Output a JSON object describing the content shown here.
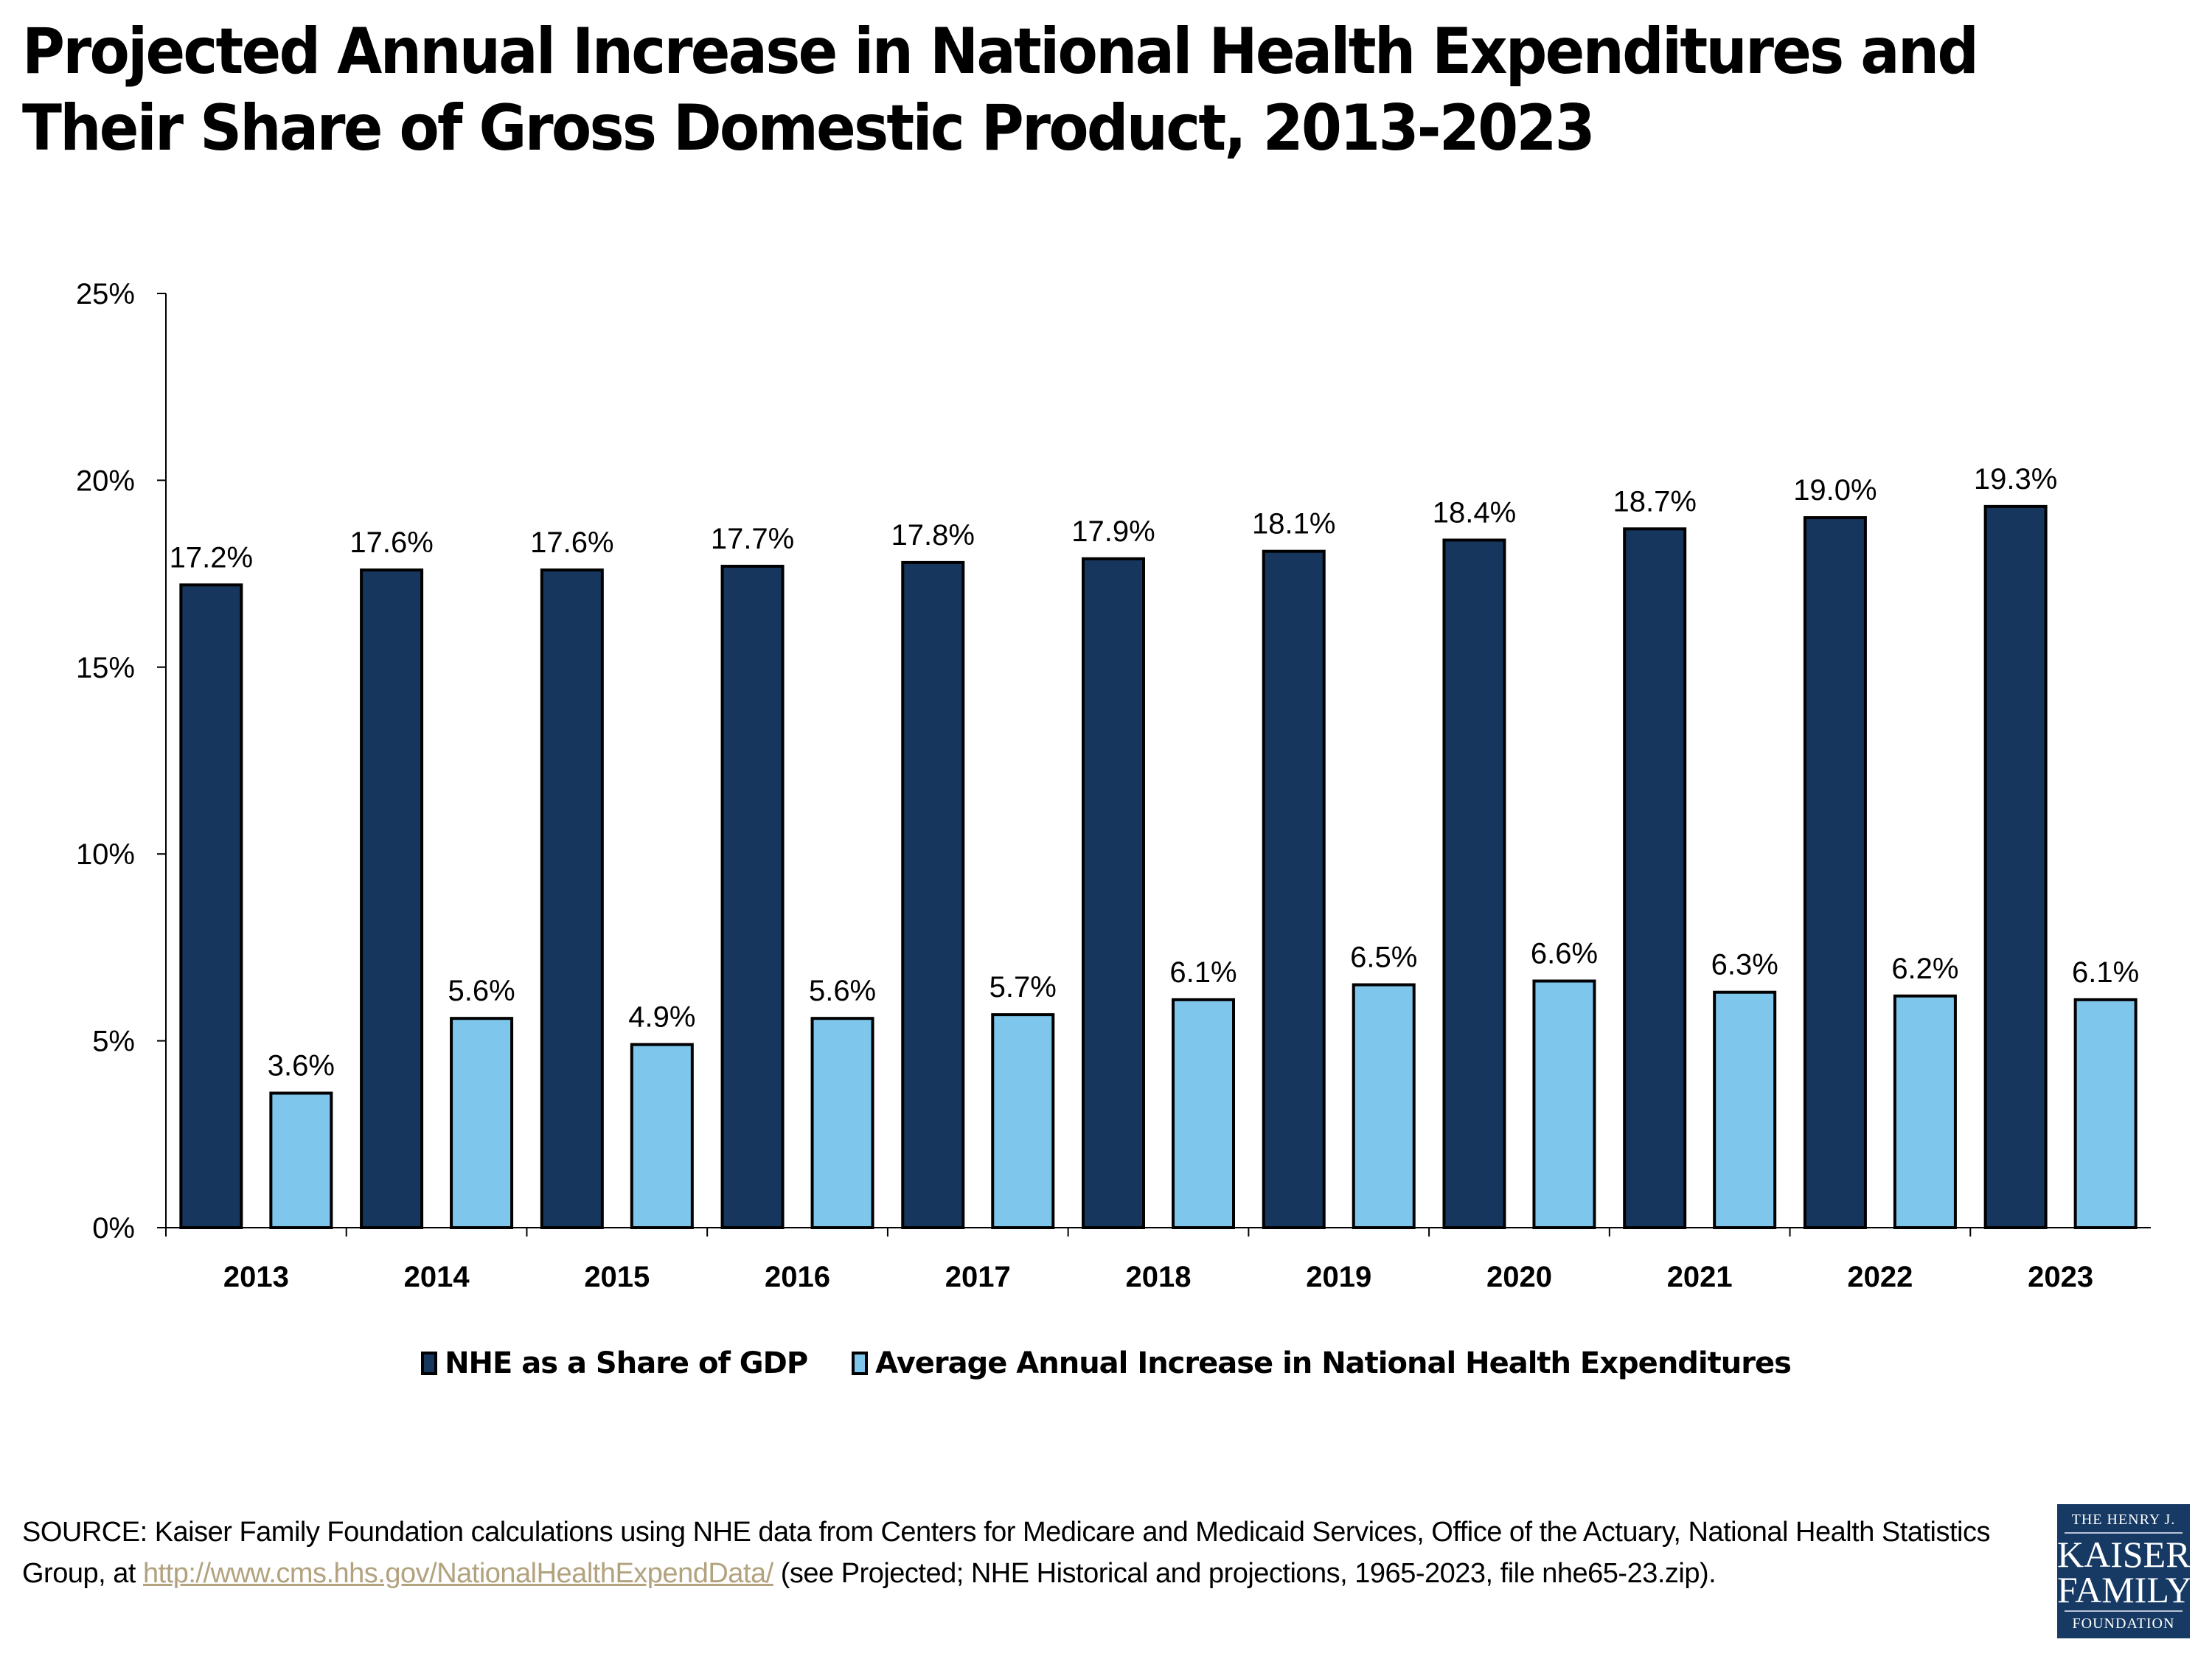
{
  "title": {
    "line1": "Projected Annual Increase in National Health Expenditures and",
    "line2": "Their Share of Gross Domestic Product, 2013-2023"
  },
  "chart_data": {
    "type": "bar",
    "title": "Projected Annual Increase in National Health Expenditures and Their Share of Gross Domestic Product, 2013-2023",
    "xlabel": "",
    "ylabel": "",
    "ylim": [
      0,
      25
    ],
    "yticks": [
      0,
      5,
      10,
      15,
      20,
      25
    ],
    "ytick_labels": [
      "0%",
      "5%",
      "10%",
      "15%",
      "20%",
      "25%"
    ],
    "grid": false,
    "legend_position": "bottom",
    "categories": [
      "2013",
      "2014",
      "2015",
      "2016",
      "2017",
      "2018",
      "2019",
      "2020",
      "2021",
      "2022",
      "2023"
    ],
    "series": [
      {
        "name": "NHE as a Share of GDP",
        "color": "#17365D",
        "values": [
          17.2,
          17.6,
          17.6,
          17.7,
          17.8,
          17.9,
          18.1,
          18.4,
          18.7,
          19.0,
          19.3
        ],
        "labels": [
          "17.2%",
          "17.6%",
          "17.6%",
          "17.7%",
          "17.8%",
          "17.9%",
          "18.1%",
          "18.4%",
          "18.7%",
          "19.0%",
          "19.3%"
        ]
      },
      {
        "name": "Average Annual Increase in National Health Expenditures",
        "color": "#7FC6EC",
        "values": [
          3.6,
          5.6,
          4.9,
          5.6,
          5.7,
          6.1,
          6.5,
          6.6,
          6.3,
          6.2,
          6.1
        ],
        "labels": [
          "3.6%",
          "5.6%",
          "4.9%",
          "5.6%",
          "5.7%",
          "6.1%",
          "6.5%",
          "6.6%",
          "6.3%",
          "6.2%",
          "6.1%"
        ]
      }
    ]
  },
  "legend": {
    "items": [
      {
        "label": "NHE as a Share of GDP",
        "color": "#17365D"
      },
      {
        "label": "Average Annual Increase in National Health Expenditures",
        "color": "#7FC6EC"
      }
    ]
  },
  "source": {
    "prefix": "SOURCE: Kaiser Family Foundation calculations using NHE data from Centers for Medicare and Medicaid Services, Office of the Actuary, National Health Statistics Group, at ",
    "link_text": "http://www.cms.hhs.gov/NationalHealthExpendData/",
    "suffix": " (see Projected; NHE Historical and projections, 1965-2023, file nhe65-23.zip).",
    "link_color": "#B2A27E"
  },
  "logo": {
    "line1": "THE HENRY J.",
    "line2": "KAISER",
    "line3": "FAMILY",
    "line4": "FOUNDATION",
    "background": "#163A64"
  }
}
